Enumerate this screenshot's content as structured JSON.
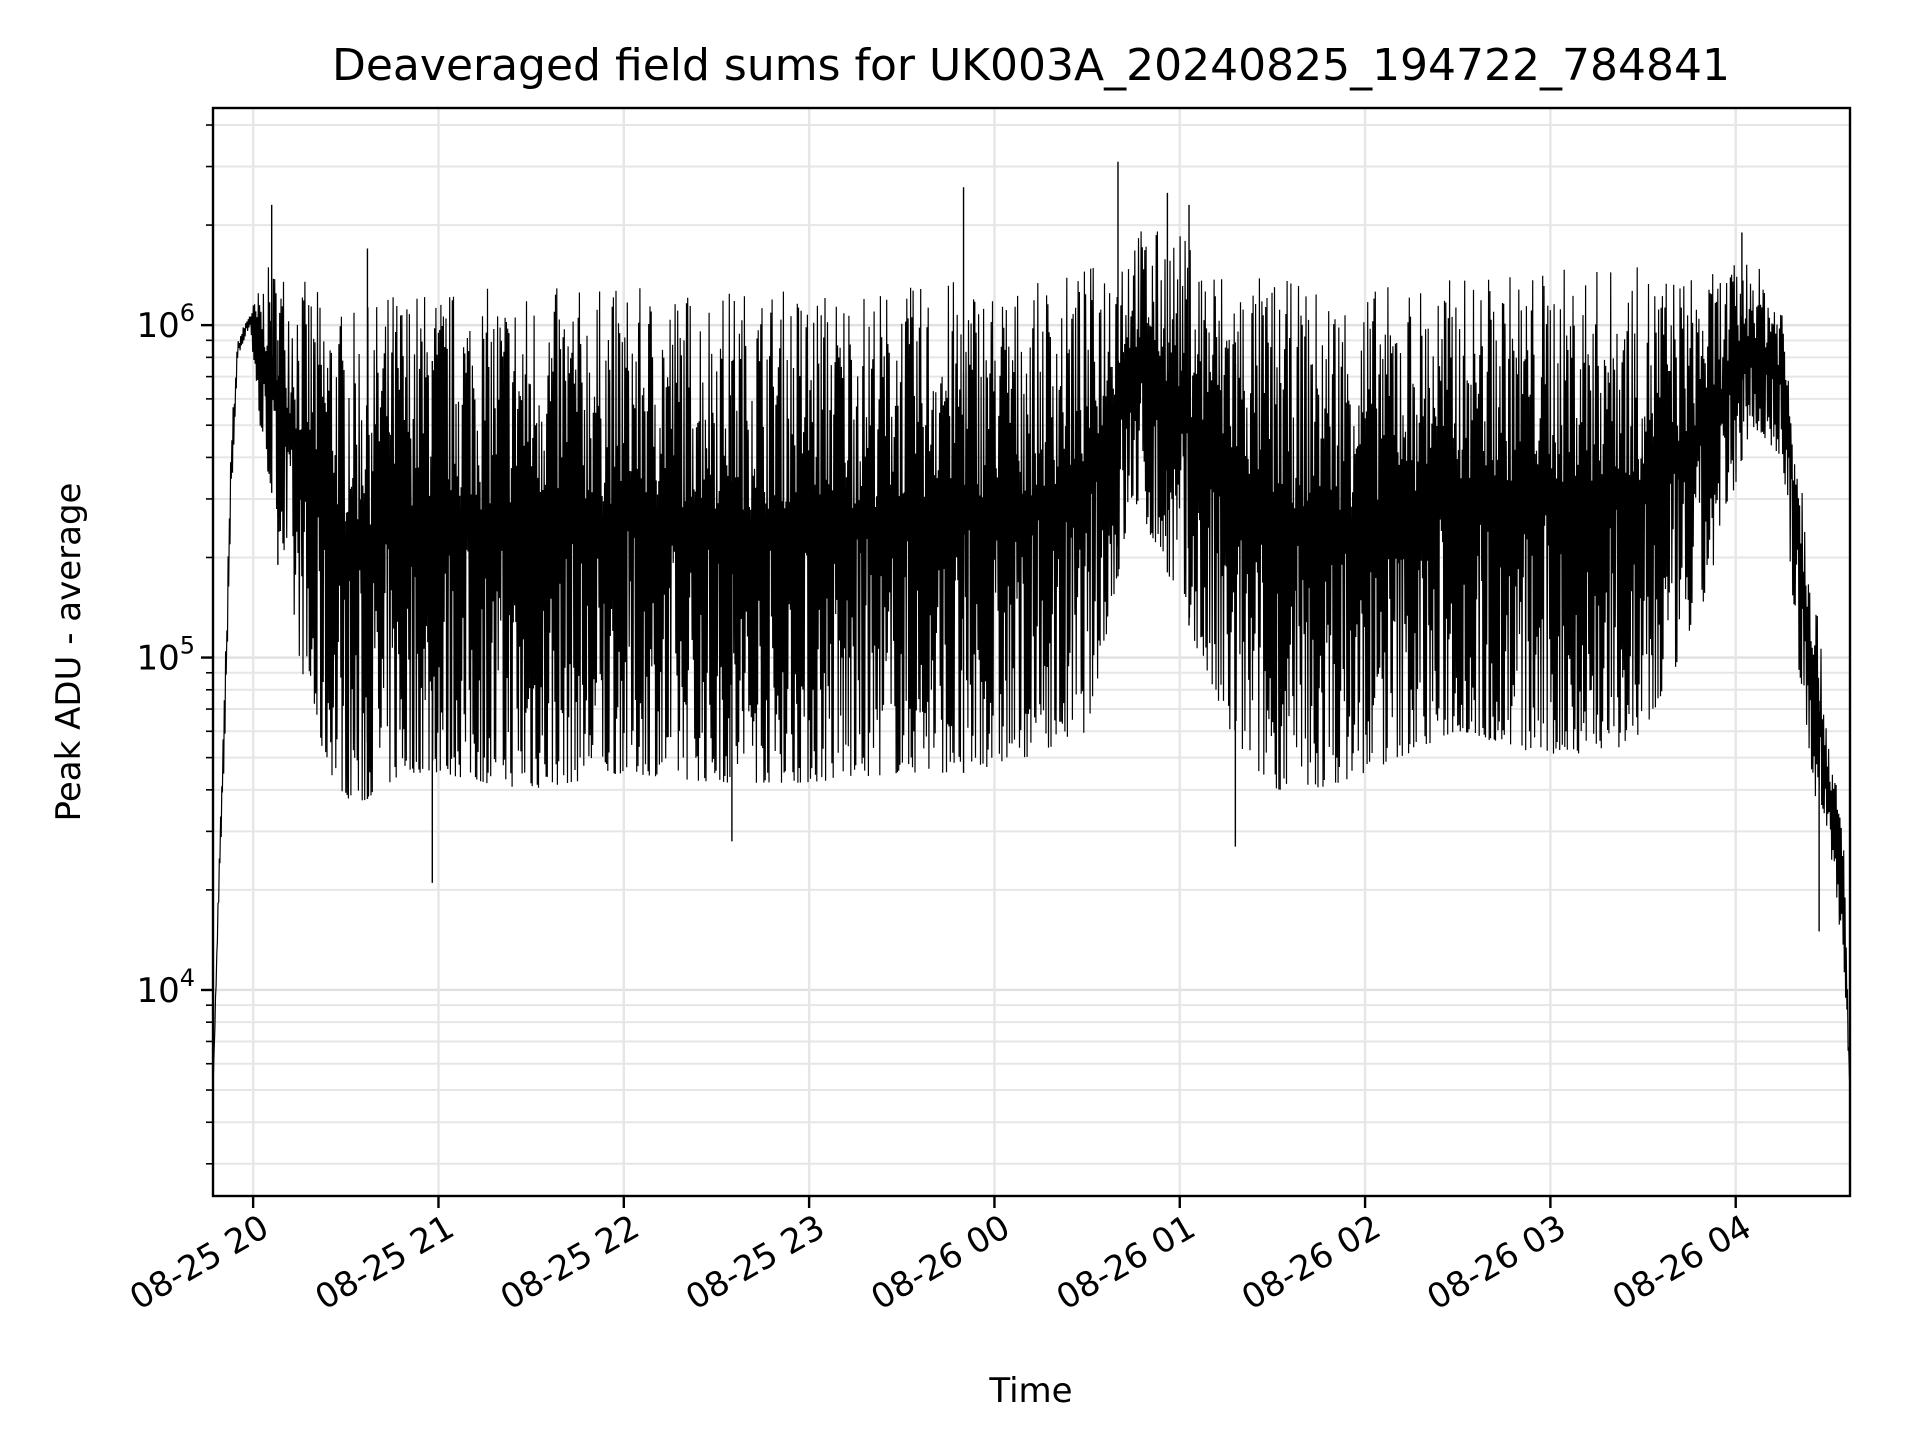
{
  "chart_data": {
    "type": "line",
    "title": "Deaveraged field sums for UK003A_20240825_194722_784841",
    "xlabel": "Time",
    "ylabel": "Peak ADU - average",
    "yscale": "log",
    "ylim": [
      2400,
      4500000
    ],
    "xlim": [
      "2024-08-25 19:47",
      "2024-08-26 04:37"
    ],
    "grid": "on",
    "line_color": "#000000",
    "x_ticks": [
      "2024-08-25 20:00",
      "2024-08-25 21:00",
      "2024-08-25 22:00",
      "2024-08-25 23:00",
      "2024-08-26 00:00",
      "2024-08-26 01:00",
      "2024-08-26 02:00",
      "2024-08-26 03:00",
      "2024-08-26 04:00"
    ],
    "x_tick_labels": [
      "08-25 20",
      "08-25 21",
      "08-25 22",
      "08-25 23",
      "08-26 00",
      "08-26 01",
      "08-26 02",
      "08-26 03",
      "08-26 04"
    ],
    "y_ticks": [
      {
        "value": 10000,
        "base": "10",
        "exp": "4"
      },
      {
        "value": 100000,
        "base": "10",
        "exp": "5"
      },
      {
        "value": 1000000,
        "base": "10",
        "exp": "6"
      }
    ],
    "series": [
      {
        "x": [
          "2024-08-25 19:47",
          "2024-08-25 19:49",
          "2024-08-25 19:51",
          "2024-08-25 19:53",
          "2024-08-25 19:55",
          "2024-08-25 19:57",
          "2024-08-25 19:59",
          "2024-08-25 20:02",
          "2024-08-25 20:05",
          "2024-08-25 20:10",
          "2024-08-25 20:15",
          "2024-08-25 20:20",
          "2024-08-25 20:25",
          "2024-08-25 20:30",
          "2024-08-25 20:35",
          "2024-08-25 20:40",
          "2024-08-25 20:45",
          "2024-08-25 20:50",
          "2024-08-25 21:00",
          "2024-08-25 21:15",
          "2024-08-25 21:30",
          "2024-08-25 22:00",
          "2024-08-25 22:30",
          "2024-08-25 23:00",
          "2024-08-25 23:30",
          "2024-08-25 23:50",
          "2024-08-26 00:10",
          "2024-08-26 00:30",
          "2024-08-26 00:45",
          "2024-08-26 01:00",
          "2024-08-26 01:15",
          "2024-08-26 01:30",
          "2024-08-26 01:45",
          "2024-08-26 02:00",
          "2024-08-26 02:30",
          "2024-08-26 03:00",
          "2024-08-26 03:30",
          "2024-08-26 03:50",
          "2024-08-26 04:05",
          "2024-08-26 04:15",
          "2024-08-26 04:20",
          "2024-08-26 04:25",
          "2024-08-26 04:30",
          "2024-08-26 04:35",
          "2024-08-26 04:37"
        ],
        "low": [
          5000,
          20000,
          60000,
          300000,
          800000,
          900000,
          1000000,
          500000,
          350000,
          200000,
          100000,
          60000,
          45000,
          38000,
          36000,
          40000,
          42000,
          45000,
          45000,
          42000,
          40000,
          45000,
          42000,
          42000,
          45000,
          45000,
          50000,
          60000,
          300000,
          150000,
          60000,
          40000,
          40000,
          45000,
          60000,
          50000,
          55000,
          150000,
          500000,
          400000,
          100000,
          40000,
          30000,
          12000,
          5000
        ],
        "high": [
          5000,
          25000,
          100000,
          500000,
          900000,
          1000000,
          1100000,
          1300000,
          1500000,
          1500000,
          1400000,
          1300000,
          1200000,
          1100000,
          1100000,
          1200000,
          1300000,
          1300000,
          1300000,
          1300000,
          1300000,
          1300000,
          1300000,
          1300000,
          1300000,
          1400000,
          1300000,
          1500000,
          2000000,
          1900000,
          1500000,
          1400000,
          1300000,
          1300000,
          1400000,
          1500000,
          1500000,
          1400000,
          1600000,
          1200000,
          500000,
          200000,
          60000,
          30000,
          5000
        ],
        "peaks": [
          {
            "x": "2024-08-25 20:06",
            "y": 2300000
          },
          {
            "x": "2024-08-25 20:37",
            "y": 1700000
          },
          {
            "x": "2024-08-25 23:50",
            "y": 2600000
          },
          {
            "x": "2024-08-26 00:40",
            "y": 3100000
          },
          {
            "x": "2024-08-26 00:56",
            "y": 2500000
          },
          {
            "x": "2024-08-26 01:03",
            "y": 2300000
          },
          {
            "x": "2024-08-26 04:02",
            "y": 1900000
          }
        ],
        "dips": [
          {
            "x": "2024-08-25 20:08",
            "y": 190000
          },
          {
            "x": "2024-08-25 20:58",
            "y": 21000
          },
          {
            "x": "2024-08-25 22:35",
            "y": 28000
          },
          {
            "x": "2024-08-26 01:18",
            "y": 27000
          },
          {
            "x": "2024-08-26 04:27",
            "y": 15000
          }
        ]
      }
    ]
  }
}
